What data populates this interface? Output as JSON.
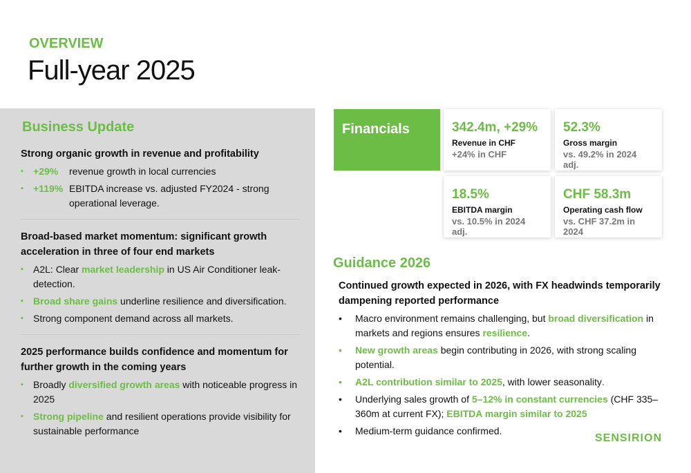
{
  "header": {
    "kicker": "OVERVIEW",
    "title": "Full-year 2025"
  },
  "business_update": {
    "title": "Business Update",
    "sections": [
      {
        "heading": "Strong organic growth in revenue and profitability",
        "layout": "columns",
        "bullets": [
          [
            {
              "text": "+29%",
              "highlight": true
            },
            {
              "text": "revenue growth in local currencies"
            }
          ],
          [
            {
              "text": "+119%",
              "highlight": true
            },
            {
              "text": "EBITDA increase vs. adjusted FY2024 - strong operational leverage."
            }
          ]
        ]
      },
      {
        "heading": "Broad-based market momentum: significant growth acceleration in three of four end markets",
        "bullets": [
          [
            {
              "text": "A2L: Clear "
            },
            {
              "text": "market leadership",
              "highlight": true
            },
            {
              "text": " in US Air Conditioner leak-detection."
            }
          ],
          [
            {
              "text": "Broad share gains",
              "highlight": true
            },
            {
              "text": " underline resilience and diversification."
            }
          ],
          [
            {
              "text": "Strong component demand across all markets."
            }
          ]
        ]
      },
      {
        "heading": "2025 performance builds confidence and momentum for further growth in the coming years",
        "bullets": [
          [
            {
              "text": "Broadly "
            },
            {
              "text": "diversified growth areas",
              "highlight": true
            },
            {
              "text": " with noticeable progress in 2025"
            }
          ],
          [
            {
              "text": "Strong pipeline",
              "highlight": true
            },
            {
              "text": " and resilient operations provide visibility for sustainable performance"
            }
          ]
        ]
      }
    ]
  },
  "financials": {
    "label": "Financials",
    "cards": [
      {
        "value": "342.4m, +29%",
        "label": "Revenue in CHF",
        "note": "+24% in CHF"
      },
      {
        "value": "52.3%",
        "label": "Gross margin",
        "note": "vs. 49.2% in 2024 adj."
      },
      {
        "value": "18.5%",
        "label": "EBITDA margin",
        "note": "vs. 10.5% in 2024 adj."
      },
      {
        "value": "CHF 58.3m",
        "label": "Operating cash flow",
        "note": "vs. CHF 37.2m in 2024"
      }
    ]
  },
  "guidance": {
    "title": "Guidance 2026",
    "heading": "Continued growth expected in 2026, with FX headwinds temporarily dampening reported performance",
    "bullets": [
      [
        {
          "text": "Macro environment remains challenging, but "
        },
        {
          "text": "broad diversification",
          "highlight": true
        },
        {
          "text": " in markets and regions ensures "
        },
        {
          "text": "resilience",
          "highlight": true
        },
        {
          "text": "."
        }
      ],
      [
        {
          "text": "New growth areas",
          "highlight": true
        },
        {
          "text": " begin contributing in 2026, with strong scaling potential."
        }
      ],
      [
        {
          "text": "A2L contribution similar to 2025",
          "highlight": true
        },
        {
          "text": ", with lower seasonality"
        },
        {
          "text": ".",
          "highlight": true
        }
      ],
      [
        {
          "text": "Underlying sales growth of "
        },
        {
          "text": "5–12% in constant currencies",
          "highlight": true
        },
        {
          "text": " (CHF 335–360m at current FX); "
        },
        {
          "text": "EBITDA margin similar to 2025",
          "highlight": true
        }
      ],
      [
        {
          "text": "Medium-term guidance confirmed."
        }
      ]
    ]
  },
  "logo": "SENSIRION"
}
